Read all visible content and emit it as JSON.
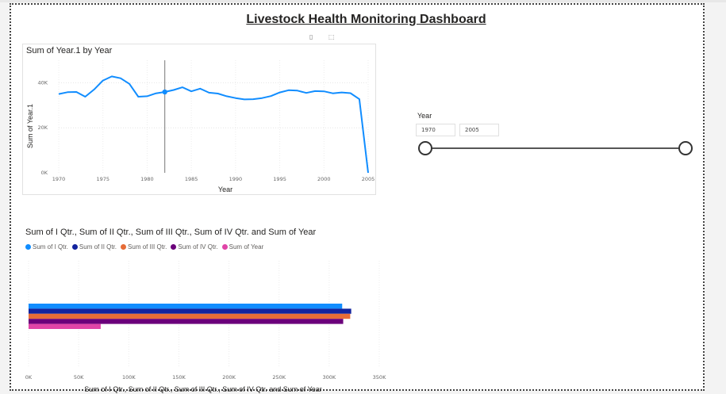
{
  "dashboard_title": "Livestock Health Monitoring Dashboard",
  "chart_data": [
    {
      "type": "line",
      "title": "Sum of Year.1 by Year",
      "xlabel": "Year",
      "ylabel": "Sum of Year.1",
      "x": [
        1970,
        1971,
        1972,
        1973,
        1974,
        1975,
        1976,
        1977,
        1978,
        1979,
        1980,
        1981,
        1982,
        1983,
        1984,
        1985,
        1986,
        1987,
        1988,
        1989,
        1990,
        1991,
        1992,
        1993,
        1994,
        1995,
        1996,
        1997,
        1998,
        1999,
        2000,
        2001,
        2002,
        2003,
        2004,
        2005
      ],
      "series": [
        {
          "values": [
            35000,
            35800,
            35900,
            33800,
            37000,
            41000,
            42800,
            42000,
            39500,
            33800,
            34000,
            35300,
            35900,
            36800,
            38000,
            36200,
            37400,
            35600,
            35200,
            34000,
            33200,
            32600,
            32700,
            33200,
            34100,
            35700,
            36700,
            36500,
            35500,
            36300,
            36200,
            35300,
            35700,
            35400,
            32700,
            0
          ],
          "color": "#118DFF"
        }
      ],
      "xlim": [
        1970,
        2005
      ],
      "ylim": [
        0,
        50000
      ],
      "x_ticks": [
        1970,
        1975,
        1980,
        1985,
        1990,
        1995,
        2000,
        2005
      ],
      "x_tick_labels": [
        "1970",
        "1975",
        "1980",
        "1985",
        "1990",
        "1995",
        "2000",
        "2005"
      ],
      "y_ticks": [
        0,
        20000,
        40000
      ],
      "y_tick_labels": [
        "0K",
        "20K",
        "40K"
      ],
      "highlight_x": 1982,
      "grid": true
    },
    {
      "type": "bar",
      "orientation": "horizontal",
      "title": "Sum of I Qtr., Sum of II Qtr., Sum of III Qtr., Sum of IV Qtr. and Sum of Year",
      "xlabel": "Sum of I Qtr., Sum of II Qtr., Sum of III Qtr., Sum of IV Qtr. and Sum of Year",
      "ylabel": "",
      "legend_position": "top-left",
      "series": [
        {
          "name": "Sum of I Qtr.",
          "values": [
            313000
          ],
          "color": "#118DFF"
        },
        {
          "name": "Sum of II Qtr.",
          "values": [
            322000
          ],
          "color": "#12239E"
        },
        {
          "name": "Sum of III Qtr.",
          "values": [
            321000
          ],
          "color": "#E66C37"
        },
        {
          "name": "Sum of IV Qtr.",
          "values": [
            314000
          ],
          "color": "#6B007B"
        },
        {
          "name": "Sum of Year",
          "values": [
            72000
          ],
          "color": "#E044A7"
        }
      ],
      "xlim": [
        0,
        350000
      ],
      "x_ticks": [
        0,
        50000,
        100000,
        150000,
        200000,
        250000,
        300000,
        350000
      ],
      "x_tick_labels": [
        "0K",
        "50K",
        "100K",
        "150K",
        "200K",
        "250K",
        "300K",
        "350K"
      ],
      "grid": true
    }
  ],
  "slicer": {
    "label": "Year",
    "start_value": "1970",
    "end_value": "2005",
    "min": 1970,
    "max": 2005
  }
}
